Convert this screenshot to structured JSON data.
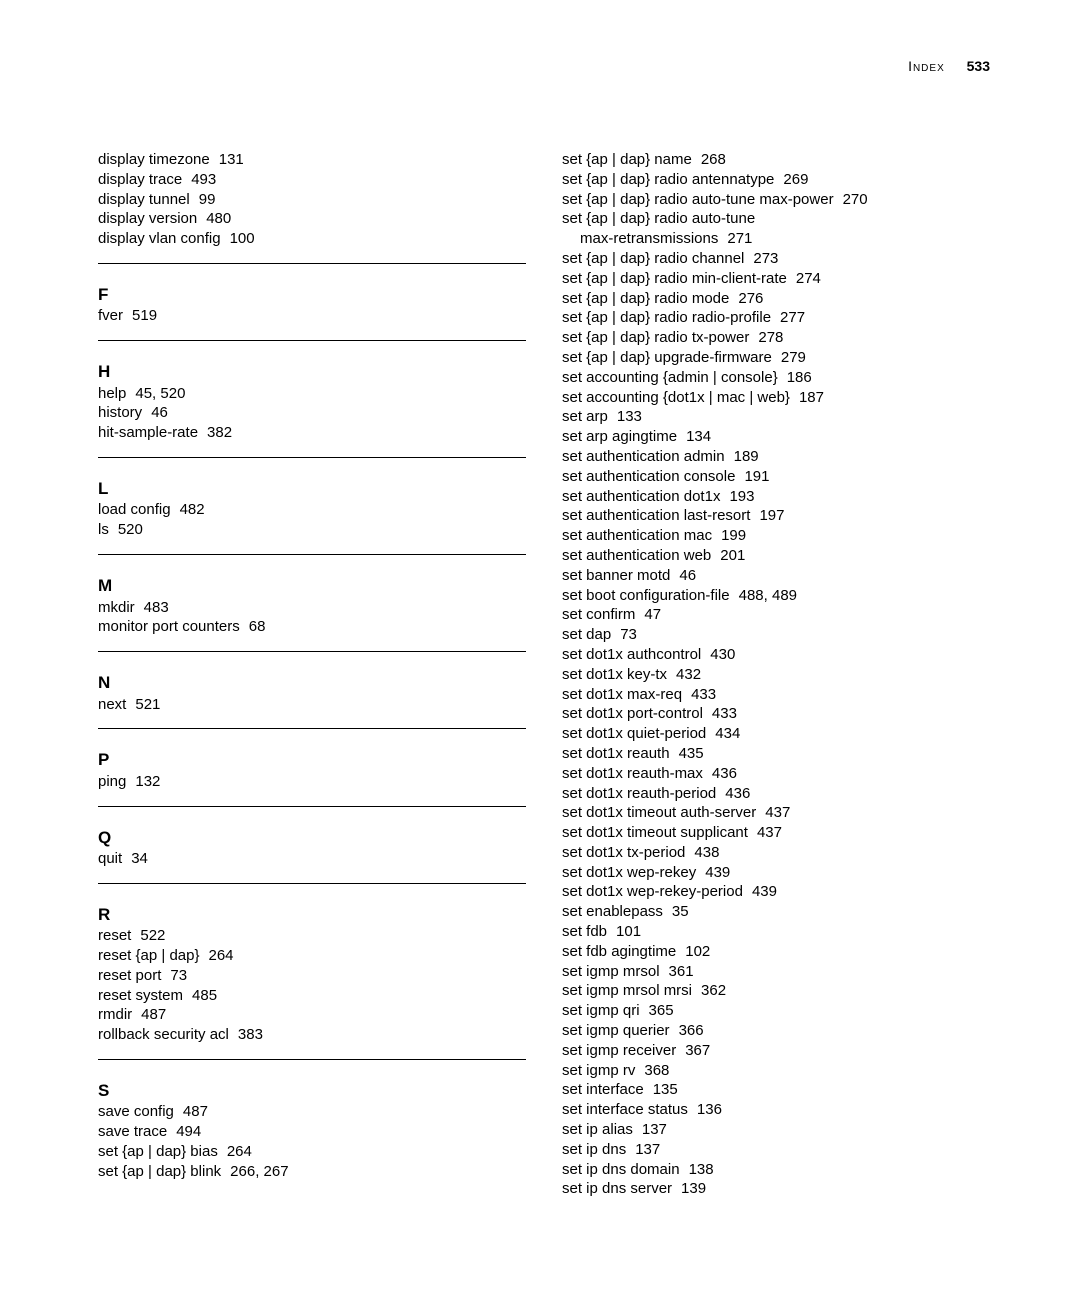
{
  "header": {
    "label": "Index",
    "page_number": "533"
  },
  "left_column": [
    {
      "type": "entry",
      "term": "display timezone",
      "pages": "131"
    },
    {
      "type": "entry",
      "term": "display trace",
      "pages": "493"
    },
    {
      "type": "entry",
      "term": "display tunnel",
      "pages": "99"
    },
    {
      "type": "entry",
      "term": "display version",
      "pages": "480"
    },
    {
      "type": "entry",
      "term": "display vlan config",
      "pages": "100"
    },
    {
      "type": "rule"
    },
    {
      "type": "head",
      "text": "F"
    },
    {
      "type": "entry",
      "term": "fver",
      "pages": "519"
    },
    {
      "type": "rule"
    },
    {
      "type": "head",
      "text": "H"
    },
    {
      "type": "entry",
      "term": "help",
      "pages": "45, 520"
    },
    {
      "type": "entry",
      "term": "history",
      "pages": "46"
    },
    {
      "type": "entry",
      "term": "hit-sample-rate",
      "pages": "382"
    },
    {
      "type": "rule"
    },
    {
      "type": "head",
      "text": "L"
    },
    {
      "type": "entry",
      "term": "load config",
      "pages": "482"
    },
    {
      "type": "entry",
      "term": "ls",
      "pages": "520"
    },
    {
      "type": "rule"
    },
    {
      "type": "head",
      "text": "M"
    },
    {
      "type": "entry",
      "term": "mkdir",
      "pages": "483"
    },
    {
      "type": "entry",
      "term": "monitor port counters",
      "pages": "68"
    },
    {
      "type": "rule"
    },
    {
      "type": "head",
      "text": "N"
    },
    {
      "type": "entry",
      "term": "next",
      "pages": "521"
    },
    {
      "type": "rule"
    },
    {
      "type": "head",
      "text": "P"
    },
    {
      "type": "entry",
      "term": "ping",
      "pages": "132"
    },
    {
      "type": "rule"
    },
    {
      "type": "head",
      "text": "Q"
    },
    {
      "type": "entry",
      "term": "quit",
      "pages": "34"
    },
    {
      "type": "rule"
    },
    {
      "type": "head",
      "text": "R"
    },
    {
      "type": "entry",
      "term": "reset",
      "pages": "522"
    },
    {
      "type": "entry",
      "term": "reset {ap | dap}",
      "pages": "264"
    },
    {
      "type": "entry",
      "term": "reset port",
      "pages": "73"
    },
    {
      "type": "entry",
      "term": "reset system",
      "pages": "485"
    },
    {
      "type": "entry",
      "term": "rmdir",
      "pages": "487"
    },
    {
      "type": "entry",
      "term": "rollback security acl",
      "pages": "383"
    },
    {
      "type": "rule"
    },
    {
      "type": "head",
      "text": "S"
    },
    {
      "type": "entry",
      "term": "save config",
      "pages": "487"
    },
    {
      "type": "entry",
      "term": "save trace",
      "pages": "494"
    },
    {
      "type": "entry",
      "term": "set {ap | dap} bias",
      "pages": "264"
    },
    {
      "type": "entry",
      "term": "set {ap | dap} blink",
      "pages": "266, 267"
    }
  ],
  "right_column": [
    {
      "type": "entry",
      "term": "set {ap | dap} name",
      "pages": "268"
    },
    {
      "type": "entry",
      "term": "set {ap | dap} radio antennatype",
      "pages": "269"
    },
    {
      "type": "entry",
      "term": "set {ap | dap} radio auto-tune max-power",
      "pages": "270"
    },
    {
      "type": "entry",
      "term": "set {ap | dap} radio auto-tune",
      "pages": ""
    },
    {
      "type": "entry",
      "term": "max-retransmissions",
      "pages": "271",
      "indent": true
    },
    {
      "type": "entry",
      "term": "set {ap | dap} radio channel",
      "pages": "273"
    },
    {
      "type": "entry",
      "term": "set {ap | dap} radio min-client-rate",
      "pages": "274"
    },
    {
      "type": "entry",
      "term": "set {ap | dap} radio mode",
      "pages": "276"
    },
    {
      "type": "entry",
      "term": "set {ap | dap} radio radio-profile",
      "pages": "277"
    },
    {
      "type": "entry",
      "term": "set {ap | dap} radio tx-power",
      "pages": "278"
    },
    {
      "type": "entry",
      "term": "set {ap | dap} upgrade-firmware",
      "pages": "279"
    },
    {
      "type": "entry",
      "term": "set accounting {admin | console}",
      "pages": "186"
    },
    {
      "type": "entry",
      "term": "set accounting {dot1x | mac | web}",
      "pages": "187"
    },
    {
      "type": "entry",
      "term": "set arp",
      "pages": "133"
    },
    {
      "type": "entry",
      "term": "set arp agingtime",
      "pages": "134"
    },
    {
      "type": "entry",
      "term": "set authentication admin",
      "pages": "189"
    },
    {
      "type": "entry",
      "term": "set authentication console",
      "pages": "191"
    },
    {
      "type": "entry",
      "term": "set authentication dot1x",
      "pages": "193"
    },
    {
      "type": "entry",
      "term": "set authentication last-resort",
      "pages": "197"
    },
    {
      "type": "entry",
      "term": "set authentication mac",
      "pages": "199"
    },
    {
      "type": "entry",
      "term": "set authentication web",
      "pages": "201"
    },
    {
      "type": "entry",
      "term": "set banner motd",
      "pages": "46"
    },
    {
      "type": "entry",
      "term": "set boot configuration-file",
      "pages": "488, 489"
    },
    {
      "type": "entry",
      "term": "set confirm",
      "pages": "47"
    },
    {
      "type": "entry",
      "term": "set dap",
      "pages": "73"
    },
    {
      "type": "entry",
      "term": "set dot1x authcontrol",
      "pages": "430"
    },
    {
      "type": "entry",
      "term": "set dot1x key-tx",
      "pages": "432"
    },
    {
      "type": "entry",
      "term": "set dot1x max-req",
      "pages": "433"
    },
    {
      "type": "entry",
      "term": "set dot1x port-control",
      "pages": "433"
    },
    {
      "type": "entry",
      "term": "set dot1x quiet-period",
      "pages": "434"
    },
    {
      "type": "entry",
      "term": "set dot1x reauth",
      "pages": "435"
    },
    {
      "type": "entry",
      "term": "set dot1x reauth-max",
      "pages": "436"
    },
    {
      "type": "entry",
      "term": "set dot1x reauth-period",
      "pages": "436"
    },
    {
      "type": "entry",
      "term": "set dot1x timeout auth-server",
      "pages": "437"
    },
    {
      "type": "entry",
      "term": "set dot1x timeout supplicant",
      "pages": "437"
    },
    {
      "type": "entry",
      "term": "set dot1x tx-period",
      "pages": "438"
    },
    {
      "type": "entry",
      "term": "set dot1x wep-rekey",
      "pages": "439"
    },
    {
      "type": "entry",
      "term": "set dot1x wep-rekey-period",
      "pages": "439"
    },
    {
      "type": "entry",
      "term": "set enablepass",
      "pages": "35"
    },
    {
      "type": "entry",
      "term": "set fdb",
      "pages": "101"
    },
    {
      "type": "entry",
      "term": "set fdb agingtime",
      "pages": "102"
    },
    {
      "type": "entry",
      "term": "set igmp mrsol",
      "pages": "361"
    },
    {
      "type": "entry",
      "term": "set igmp mrsol mrsi",
      "pages": "362"
    },
    {
      "type": "entry",
      "term": "set igmp qri",
      "pages": "365"
    },
    {
      "type": "entry",
      "term": "set igmp querier",
      "pages": "366"
    },
    {
      "type": "entry",
      "term": "set igmp receiver",
      "pages": "367"
    },
    {
      "type": "entry",
      "term": "set igmp rv",
      "pages": "368"
    },
    {
      "type": "entry",
      "term": "set interface",
      "pages": "135"
    },
    {
      "type": "entry",
      "term": "set interface status",
      "pages": "136"
    },
    {
      "type": "entry",
      "term": "set ip alias",
      "pages": "137"
    },
    {
      "type": "entry",
      "term": "set ip dns",
      "pages": "137"
    },
    {
      "type": "entry",
      "term": "set ip dns domain",
      "pages": "138"
    },
    {
      "type": "entry",
      "term": "set ip dns server",
      "pages": "139"
    }
  ]
}
